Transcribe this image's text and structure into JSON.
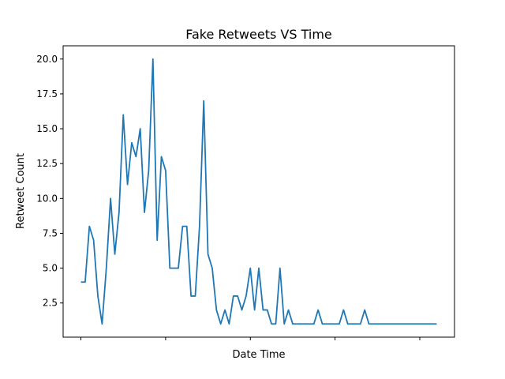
{
  "chart_data": {
    "type": "line",
    "title": "Fake Retweets VS Time",
    "xlabel": "Date Time",
    "ylabel": "Retweet Count",
    "xlim": [
      -4.2,
      88.2
    ],
    "ylim": [
      0.05,
      20.95
    ],
    "yticks": [
      2.5,
      5.0,
      7.5,
      10.0,
      12.5,
      15.0,
      17.5,
      20.0
    ],
    "ytick_labels": [
      "2.5",
      "5.0",
      "7.5",
      "10.0",
      "12.5",
      "15.0",
      "17.5",
      "20.0"
    ],
    "xticks": [
      0,
      20,
      40,
      60,
      80
    ],
    "grid": false,
    "legend": "none",
    "series": [
      {
        "color": "#1f77b4",
        "x": [
          0,
          1,
          2,
          3,
          4,
          5,
          6,
          7,
          8,
          9,
          10,
          11,
          12,
          13,
          14,
          15,
          16,
          17,
          18,
          19,
          20,
          21,
          22,
          23,
          24,
          25,
          26,
          27,
          28,
          29,
          30,
          31,
          32,
          33,
          34,
          35,
          36,
          37,
          38,
          39,
          40,
          41,
          42,
          43,
          44,
          45,
          46,
          47,
          48,
          49,
          50,
          51,
          52,
          53,
          54,
          55,
          56,
          57,
          58,
          59,
          60,
          61,
          62,
          63,
          64,
          65,
          66,
          67,
          68,
          69,
          70,
          71,
          72,
          73,
          74,
          75,
          76,
          77,
          78,
          79,
          80,
          81,
          82,
          83,
          84
        ],
        "y": [
          4,
          4,
          8,
          7,
          3,
          1,
          5,
          10,
          6,
          9,
          16,
          11,
          14,
          13,
          15,
          9,
          12,
          20,
          7,
          13,
          12,
          5,
          5,
          5,
          8,
          8,
          3,
          3,
          8,
          17,
          6,
          5,
          2,
          1,
          2,
          1,
          3,
          3,
          2,
          3,
          5,
          2,
          5,
          2,
          2,
          1,
          1,
          5,
          1,
          2,
          1,
          1,
          1,
          1,
          1,
          1,
          2,
          1,
          1,
          1,
          1,
          1,
          2,
          1,
          1,
          1,
          1,
          2,
          1,
          1,
          1,
          1,
          1,
          1,
          1,
          1,
          1,
          1,
          1,
          1,
          1,
          1,
          1,
          1,
          1
        ]
      }
    ]
  }
}
